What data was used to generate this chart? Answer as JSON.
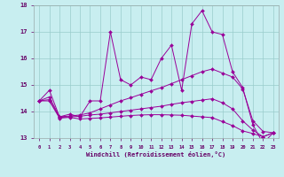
{
  "xlabel": "Windchill (Refroidissement éolien,°C)",
  "x_values": [
    0,
    1,
    2,
    3,
    4,
    5,
    6,
    7,
    8,
    9,
    10,
    11,
    12,
    13,
    14,
    15,
    16,
    17,
    18,
    19,
    20,
    21,
    22,
    23
  ],
  "line1": [
    14.4,
    14.8,
    13.8,
    13.9,
    13.8,
    14.4,
    14.4,
    17.0,
    15.2,
    15.0,
    15.3,
    15.2,
    16.0,
    16.5,
    14.8,
    17.3,
    17.8,
    17.0,
    16.9,
    15.5,
    14.9,
    13.5,
    12.8,
    13.2
  ],
  "line2": [
    14.4,
    14.55,
    13.8,
    13.83,
    13.87,
    13.95,
    14.1,
    14.25,
    14.4,
    14.52,
    14.65,
    14.78,
    14.9,
    15.05,
    15.2,
    15.35,
    15.5,
    15.6,
    15.45,
    15.3,
    14.85,
    13.65,
    13.25,
    13.2
  ],
  "line3": [
    14.4,
    14.45,
    13.78,
    13.8,
    13.82,
    13.87,
    13.9,
    13.95,
    14.0,
    14.05,
    14.1,
    14.15,
    14.2,
    14.27,
    14.33,
    14.38,
    14.43,
    14.48,
    14.33,
    14.1,
    13.65,
    13.3,
    13.05,
    13.2
  ],
  "line4": [
    14.4,
    14.4,
    13.75,
    13.78,
    13.72,
    13.74,
    13.76,
    13.79,
    13.82,
    13.85,
    13.87,
    13.88,
    13.88,
    13.87,
    13.86,
    13.83,
    13.8,
    13.77,
    13.62,
    13.47,
    13.27,
    13.17,
    13.05,
    13.2
  ],
  "color": "#990099",
  "bg_color": "#c8eef0",
  "grid_color": "#99cccc",
  "ylim": [
    13.0,
    18.0
  ],
  "yticks": [
    13,
    14,
    15,
    16,
    17,
    18
  ],
  "xticks": [
    0,
    1,
    2,
    3,
    4,
    5,
    6,
    7,
    8,
    9,
    10,
    11,
    12,
    13,
    14,
    15,
    16,
    17,
    18,
    19,
    20,
    21,
    22,
    23
  ]
}
